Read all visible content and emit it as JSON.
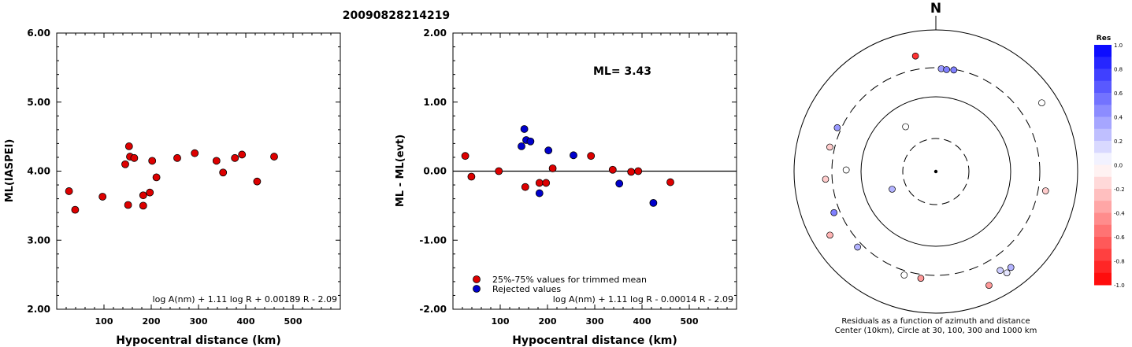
{
  "title": "20090828214219",
  "chart_data": [
    {
      "type": "scatter",
      "ylabel": "ML(IASPEI)",
      "xlabel": "Hypocentral distance (km)",
      "xlim": [
        0,
        600
      ],
      "ylim": [
        2.0,
        6.0
      ],
      "xticks": [
        "100",
        "200",
        "300",
        "400",
        "500"
      ],
      "xtick_values": [
        100,
        200,
        300,
        400,
        500
      ],
      "yticks": [
        "2.00",
        "3.00",
        "4.00",
        "5.00",
        "6.00"
      ],
      "ytick_values": [
        2,
        3,
        4,
        5,
        6
      ],
      "formula": "log A(nm) + 1.11 log R + 0.00189 R - 2.09",
      "series": [
        {
          "color": "#dd0000",
          "points": [
            [
              26,
              3.71
            ],
            [
              39,
              3.44
            ],
            [
              97,
              3.63
            ],
            [
              145,
              4.1
            ],
            [
              151,
              3.51
            ],
            [
              153,
              4.36
            ],
            [
              155,
              4.21
            ],
            [
              164,
              4.19
            ],
            [
              183,
              3.65
            ],
            [
              183,
              3.5
            ],
            [
              197,
              3.69
            ],
            [
              202,
              4.15
            ],
            [
              211,
              3.91
            ],
            [
              255,
              4.19
            ],
            [
              292,
              4.26
            ],
            [
              338,
              4.15
            ],
            [
              352,
              3.98
            ],
            [
              377,
              4.19
            ],
            [
              392,
              4.24
            ],
            [
              424,
              3.85
            ],
            [
              460,
              4.21
            ]
          ]
        }
      ]
    },
    {
      "type": "scatter",
      "ylabel": "ML - ML(evt)",
      "xlabel": "Hypocentral distance (km)",
      "xlim": [
        0,
        600
      ],
      "ylim": [
        -2.0,
        2.0
      ],
      "xticks": [
        "100",
        "200",
        "300",
        "400",
        "500"
      ],
      "xtick_values": [
        100,
        200,
        300,
        400,
        500
      ],
      "yticks": [
        "-2.00",
        "-1.00",
        "0.00",
        "1.00",
        "2.00"
      ],
      "ytick_values": [
        -2,
        -1,
        0,
        1,
        2
      ],
      "annotation": "ML= 3.43",
      "formula": "log A(nm) + 1.11 log R - 0.00014 R - 2.09",
      "legend": [
        {
          "label": "25%-75% values for trimmed mean",
          "color": "#dd0000"
        },
        {
          "label": "Rejected values",
          "color": "#0000cc"
        }
      ],
      "series": [
        {
          "name": "25%-75% values for trimmed mean",
          "color": "#dd0000",
          "points": [
            [
              26,
              0.22
            ],
            [
              39,
              -0.08
            ],
            [
              97,
              0.0
            ],
            [
              153,
              -0.23
            ],
            [
              183,
              -0.17
            ],
            [
              197,
              -0.17
            ],
            [
              211,
              0.04
            ],
            [
              292,
              0.22
            ],
            [
              338,
              0.02
            ],
            [
              377,
              -0.01
            ],
            [
              392,
              0.0
            ],
            [
              460,
              -0.16
            ]
          ]
        },
        {
          "name": "Rejected values",
          "color": "#0000cc",
          "points": [
            [
              145,
              0.36
            ],
            [
              151,
              0.61
            ],
            [
              155,
              0.45
            ],
            [
              164,
              0.43
            ],
            [
              183,
              -0.32
            ],
            [
              202,
              0.3
            ],
            [
              255,
              0.23
            ],
            [
              352,
              -0.18
            ],
            [
              424,
              -0.46
            ]
          ]
        }
      ]
    },
    {
      "type": "polar",
      "north_label": "N",
      "caption_lines": [
        "Residuals as a function of azimuth and distance",
        "Center (10km), Circle at 30, 100, 300 and 1000 km"
      ],
      "rings_km": [
        30,
        100,
        300,
        1000
      ],
      "stations": [
        {
          "az": 350,
          "dist": 460,
          "res": -0.8
        },
        {
          "az": 3,
          "dist": 290,
          "res": 0.4
        },
        {
          "az": 6,
          "dist": 285,
          "res": 0.5
        },
        {
          "az": 10,
          "dist": 292,
          "res": 0.5
        },
        {
          "az": 57,
          "dist": 610,
          "res": 0.0
        },
        {
          "az": 100,
          "dist": 380,
          "res": -0.2
        },
        {
          "az": 147,
          "dist": 470,
          "res": 0.2
        },
        {
          "az": 142,
          "dist": 530,
          "res": 0.3
        },
        {
          "az": 145,
          "dist": 565,
          "res": 0.1
        },
        {
          "az": 155,
          "dist": 600,
          "res": -0.4
        },
        {
          "az": 188,
          "dist": 340,
          "res": -0.4
        },
        {
          "az": 197,
          "dist": 345,
          "res": 0.0
        },
        {
          "az": 226,
          "dist": 350,
          "res": 0.3
        },
        {
          "az": 239,
          "dist": 560,
          "res": -0.3
        },
        {
          "az": 248,
          "dist": 362,
          "res": 0.5
        },
        {
          "az": 266,
          "dist": 370,
          "res": -0.2
        },
        {
          "az": 271,
          "dist": 175,
          "res": 0.0
        },
        {
          "az": 283,
          "dist": 350,
          "res": -0.2
        },
        {
          "az": 294,
          "dist": 340,
          "res": 0.4
        },
        {
          "az": 326,
          "dist": 55,
          "res": 0.0
        },
        {
          "az": 248,
          "dist": 45,
          "res": 0.3
        }
      ],
      "colorbar": {
        "title": "Res",
        "ticks": [
          "1.0",
          "0.8",
          "0.6",
          "0.4",
          "0.2",
          "0.0",
          "-0.2",
          "-0.4",
          "-0.6",
          "-0.8",
          "-1.0"
        ],
        "top_color": "#0000ff",
        "mid_color": "#ffffff",
        "bottom_color": "#ff0000"
      }
    }
  ]
}
